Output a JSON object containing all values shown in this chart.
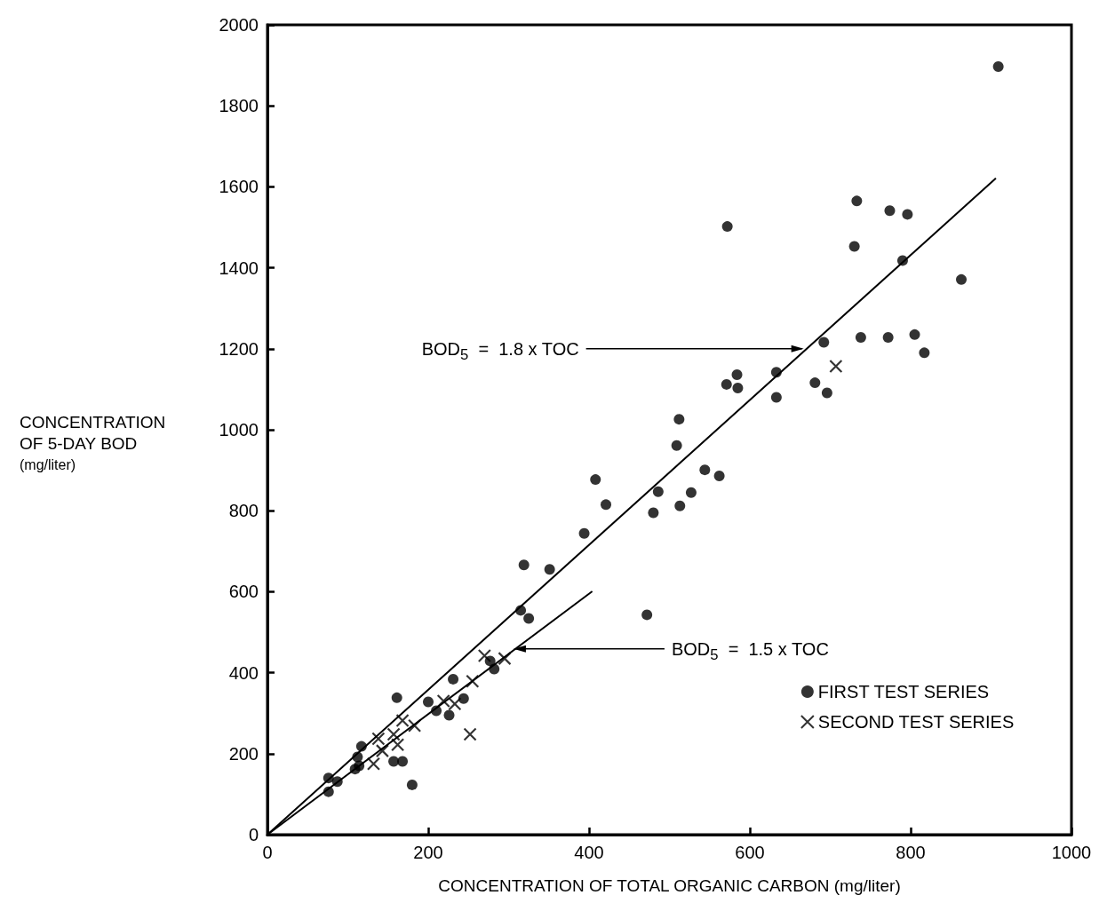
{
  "chart_data": {
    "type": "scatter",
    "xlabel": "CONCENTRATION OF TOTAL ORGANIC CARBON (mg/liter)",
    "ylabel": "CONCENTRATION\nOF 5-DAY BOD\n(mg/liter)",
    "xlim": [
      0,
      1000
    ],
    "ylim": [
      0,
      2000
    ],
    "xticks": [
      0,
      200,
      400,
      600,
      800,
      1000
    ],
    "yticks": [
      0,
      200,
      400,
      600,
      800,
      1000,
      1200,
      1400,
      1600,
      1800,
      2000
    ],
    "grid": false,
    "legend": "bottom right",
    "marker": "circle",
    "annotations": [
      {
        "text": "BOD$_{5}$ = 1.8 x TOC",
        "x": 667,
        "y": 1200
      },
      {
        "text": "BOD$_{5}$ = 1.5 x TOC",
        "x": 306,
        "y": 459
      }
    ],
    "series": [
      {
        "name": "FIRST TEST SERIES",
        "color": "#000000",
        "x": [
          76,
          76,
          87,
          109,
          114,
          112,
          117,
          161,
          157,
          168,
          180,
          200,
          210,
          226,
          231,
          244,
          277,
          282,
          315,
          319,
          325,
          351,
          394,
          408,
          421,
          472,
          480,
          486,
          509,
          512,
          513,
          527,
          544,
          562,
          572,
          571,
          584,
          585,
          633,
          633,
          681,
          696,
          692,
          733,
          730,
          738,
          774,
          772,
          790,
          796,
          805,
          817,
          863,
          909
        ],
        "values": [
          106,
          140,
          131,
          162,
          170,
          192,
          218,
          338,
          181,
          181,
          123,
          328,
          306,
          295,
          384,
          336,
          429,
          409,
          554,
          666,
          534,
          655,
          744,
          877,
          815,
          543,
          795,
          847,
          961,
          1026,
          812,
          845,
          901,
          886,
          1502,
          1112,
          1136,
          1103,
          1142,
          1080,
          1116,
          1091,
          1216,
          1565,
          1453,
          1228,
          1541,
          1228,
          1418,
          1532,
          1235,
          1190,
          1371,
          1897
        ]
      },
      {
        "name": "SECOND TEST SERIES",
        "color": "#000000",
        "marker": "cross",
        "x": [
          132,
          143,
          138,
          157,
          162,
          168,
          183,
          219,
          233,
          255,
          270,
          295,
          252,
          707
        ],
        "values": [
          175,
          207,
          237,
          248,
          222,
          282,
          269,
          330,
          323,
          379,
          442,
          435,
          248,
          1157
        ]
      },
      {
        "type": "line",
        "color": "#000000",
        "marker": "none",
        "x": [
          0,
          906
        ],
        "values": [
          0,
          1621
        ]
      },
      {
        "type": "line",
        "color": "#000000",
        "marker": "none",
        "x": [
          0,
          404
        ],
        "values": [
          0,
          601
        ]
      }
    ]
  }
}
